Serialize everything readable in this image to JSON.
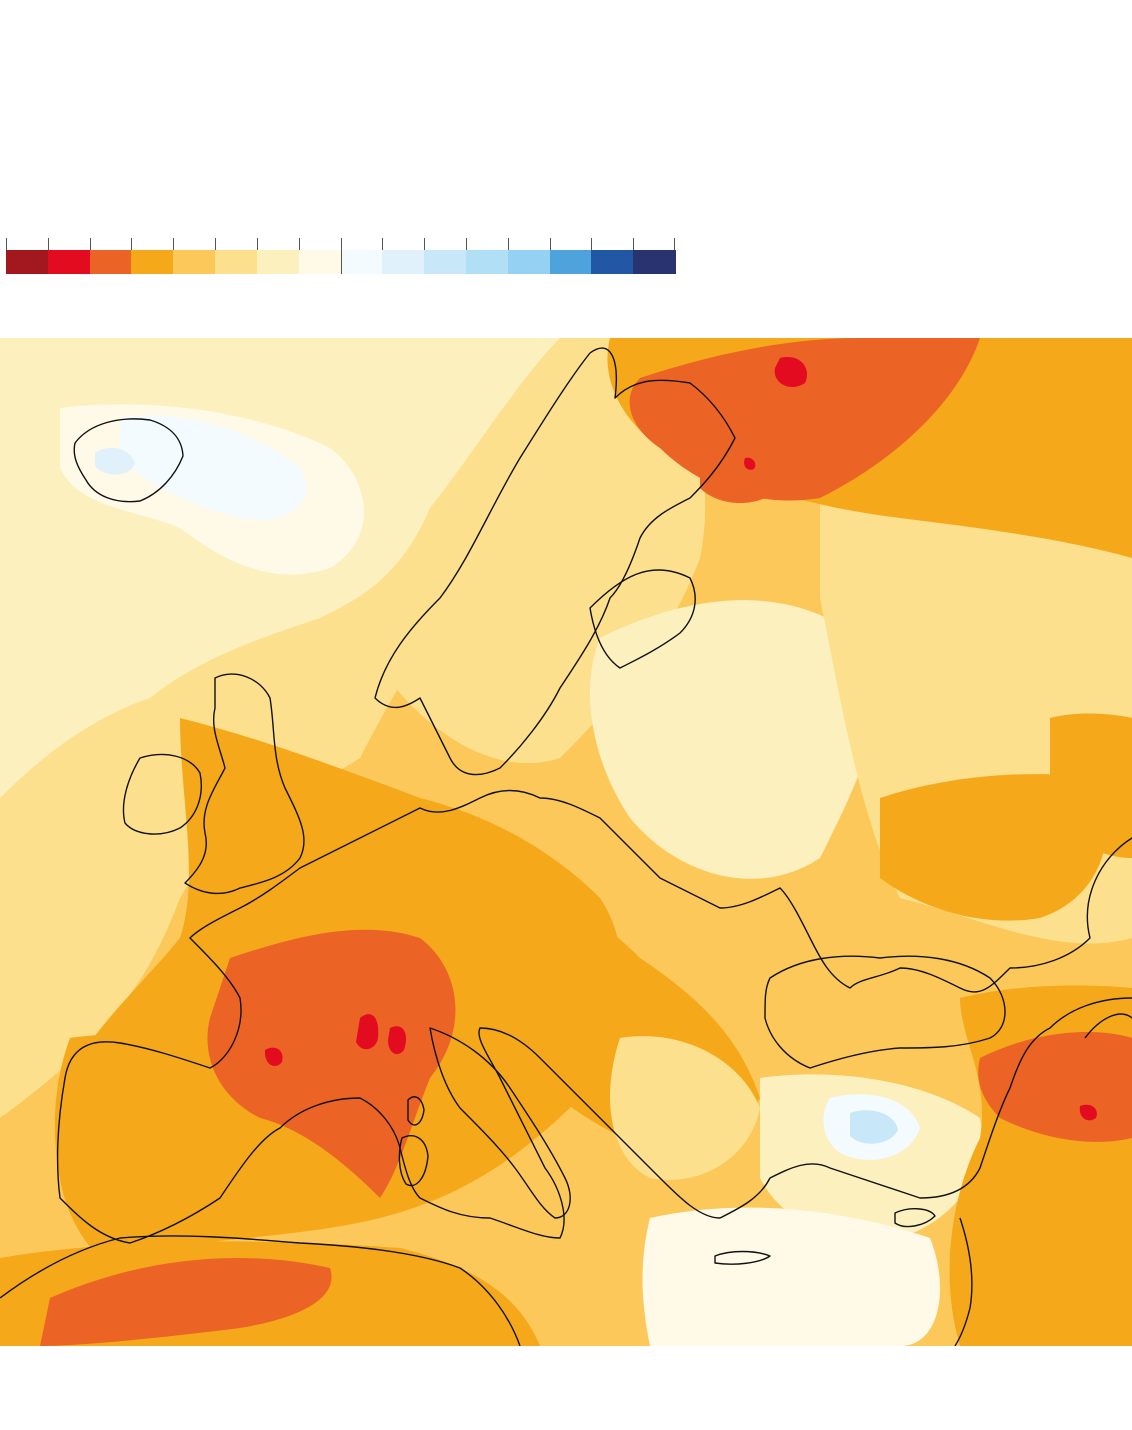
{
  "legend": {
    "colors": [
      "#a3171f",
      "#e30b20",
      "#eb6426",
      "#f6a81b",
      "#fcc85a",
      "#fde08e",
      "#fdf0bf",
      "#fffae8",
      "#f4fbfe",
      "#e0f1fb",
      "#c8e7f8",
      "#b1dff5",
      "#95d1f2",
      "#4fa3dc",
      "#2257a6",
      "#283370"
    ]
  },
  "map": {
    "base_color": "#f6a81b",
    "coast_color": "#111111"
  }
}
